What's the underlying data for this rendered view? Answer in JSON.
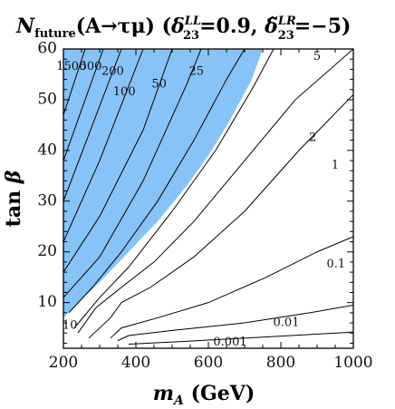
{
  "chart_data": {
    "type": "contour",
    "title_parts": {
      "n": "N",
      "n_sub": "future",
      "process": "(A→τμ) (",
      "delta1": "δ",
      "delta1_sup": "LL",
      "delta1_sub": "23",
      "val1": "=0.9, ",
      "delta2": "δ̃",
      "delta2_sup": "LR",
      "delta2_sub": "23",
      "val2": "=−5)"
    },
    "xlabel_parts": {
      "m": "m",
      "m_sub": "A",
      "unit": " (GeV)"
    },
    "ylabel_parts": {
      "tan": "tan ",
      "beta": "β"
    },
    "xlim": [
      200,
      1000
    ],
    "ylim": [
      1,
      60
    ],
    "x_ticks": [
      {
        "value": 200,
        "label": "200"
      },
      {
        "value": 400,
        "label": "400"
      },
      {
        "value": 600,
        "label": "600"
      },
      {
        "value": 800,
        "label": "800"
      },
      {
        "value": 1000,
        "label": "1000"
      }
    ],
    "y_ticks": [
      {
        "value": 10,
        "label": "10"
      },
      {
        "value": 20,
        "label": "20"
      },
      {
        "value": 30,
        "label": "30"
      },
      {
        "value": 40,
        "label": "40"
      },
      {
        "value": 50,
        "label": "50"
      },
      {
        "value": 60,
        "label": "60"
      }
    ],
    "shaded_region": {
      "color": "#87c3f7",
      "boundary": [
        [
          200,
          60
        ],
        [
          200,
          7
        ],
        [
          240,
          10
        ],
        [
          300,
          14
        ],
        [
          380,
          20
        ],
        [
          460,
          26
        ],
        [
          540,
          33
        ],
        [
          600,
          39
        ],
        [
          660,
          46
        ],
        [
          720,
          54
        ],
        [
          750,
          60
        ]
      ]
    },
    "contours": [
      {
        "label": "1500",
        "points": [
          [
            200,
            47
          ],
          [
            260,
            60
          ]
        ]
      },
      {
        "label": "500",
        "points": [
          [
            200,
            38
          ],
          [
            310,
            60
          ]
        ]
      },
      {
        "label": "200",
        "points": [
          [
            200,
            30
          ],
          [
            360,
            60
          ]
        ]
      },
      {
        "label": "100",
        "points": [
          [
            200,
            22
          ],
          [
            300,
            38
          ],
          [
            420,
            60
          ]
        ]
      },
      {
        "label": "50",
        "points": [
          [
            200,
            16
          ],
          [
            300,
            27
          ],
          [
            420,
            44
          ],
          [
            500,
            60
          ]
        ]
      },
      {
        "label": "25",
        "points": [
          [
            200,
            11
          ],
          [
            300,
            19
          ],
          [
            420,
            34
          ],
          [
            540,
            53
          ],
          [
            580,
            60
          ]
        ]
      },
      {
        "label": "10",
        "points": [
          [
            215,
            8
          ],
          [
            280,
            13
          ],
          [
            360,
            20
          ],
          [
            460,
            30
          ],
          [
            560,
            42
          ],
          [
            650,
            54
          ],
          [
            700,
            60
          ]
        ]
      },
      {
        "label": "5",
        "points": [
          [
            230,
            5
          ],
          [
            300,
            11
          ],
          [
            380,
            17
          ],
          [
            500,
            28
          ],
          [
            620,
            40
          ],
          [
            720,
            52
          ],
          [
            780,
            60
          ]
        ]
      },
      {
        "label": "2",
        "points": [
          [
            240,
            4
          ],
          [
            290,
            9
          ],
          [
            360,
            13
          ],
          [
            450,
            18
          ],
          [
            560,
            26
          ],
          [
            700,
            38
          ],
          [
            840,
            50
          ],
          [
            1000,
            60
          ]
        ]
      },
      {
        "label": "1",
        "points": [
          [
            270,
            3
          ],
          [
            330,
            7
          ],
          [
            360,
            10
          ],
          [
            440,
            13
          ],
          [
            560,
            19
          ],
          [
            700,
            28
          ],
          [
            850,
            40
          ],
          [
            1000,
            51
          ]
        ]
      },
      {
        "label": "0.1",
        "points": [
          [
            330,
            3
          ],
          [
            360,
            5
          ],
          [
            460,
            7
          ],
          [
            600,
            10
          ],
          [
            760,
            15
          ],
          [
            900,
            20
          ],
          [
            1000,
            23
          ]
        ]
      },
      {
        "label": "0.01",
        "points": [
          [
            350,
            2.5
          ],
          [
            380,
            3.5
          ],
          [
            500,
            4.5
          ],
          [
            700,
            6
          ],
          [
            880,
            8
          ],
          [
            1000,
            9.5
          ]
        ]
      },
      {
        "label": "0.001",
        "points": [
          [
            380,
            1.8
          ],
          [
            520,
            2.3
          ],
          [
            700,
            3
          ],
          [
            880,
            3.7
          ],
          [
            1000,
            4.2
          ]
        ]
      }
    ],
    "contour_labels": [
      {
        "text": "1500",
        "x": 222,
        "y": 56.5
      },
      {
        "text": "500",
        "x": 275,
        "y": 56.5
      },
      {
        "text": "200",
        "x": 336,
        "y": 55.5
      },
      {
        "text": "100",
        "x": 368,
        "y": 51.5
      },
      {
        "text": "50",
        "x": 464,
        "y": 53
      },
      {
        "text": "25",
        "x": 567,
        "y": 55.5
      },
      {
        "text": "5",
        "x": 900,
        "y": 58.5
      },
      {
        "text": "2",
        "x": 888,
        "y": 42.5
      },
      {
        "text": "1",
        "x": 950,
        "y": 37
      },
      {
        "text": "0.1",
        "x": 952,
        "y": 17.5
      },
      {
        "text": "0.01",
        "x": 815,
        "y": 6
      },
      {
        "text": "0.001",
        "x": 660,
        "y": 2.2
      },
      {
        "text": "10",
        "x": 218,
        "y": 5.5
      }
    ]
  },
  "colors": {
    "shade": "#87c3f7",
    "line": "#000000",
    "frame": "#000000"
  }
}
